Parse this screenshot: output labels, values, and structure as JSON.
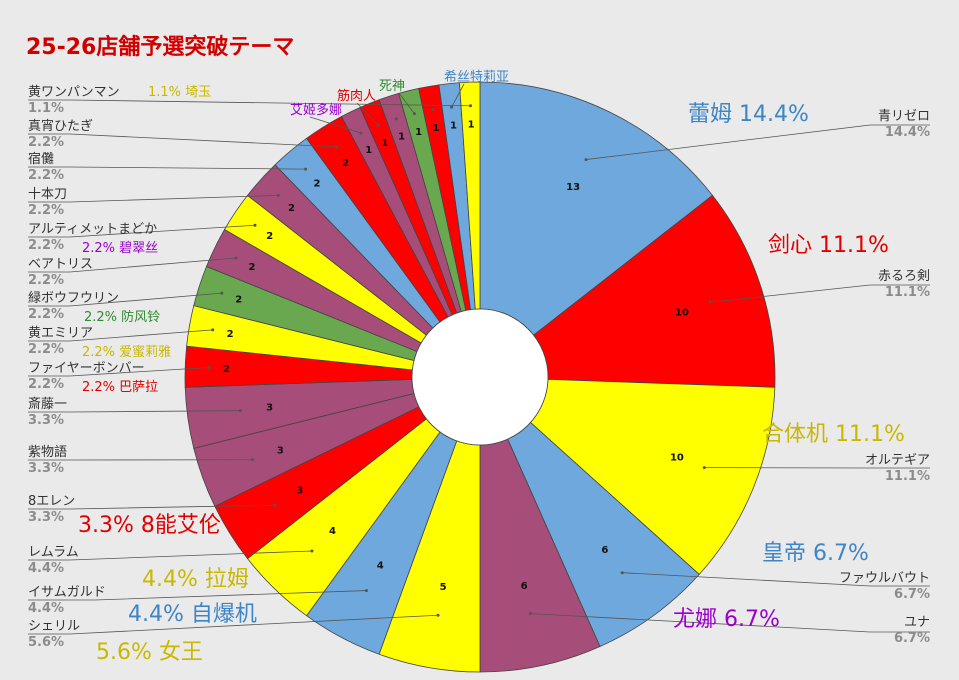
{
  "chart_data": {
    "type": "pie",
    "donut": true,
    "title": "25-26店舗予選突破テーマ",
    "slices": [
      {
        "name": "青リゼロ",
        "value": 13,
        "pct": "14.4%",
        "color": "#6fa8dc",
        "annotation": "蕾姆 14.4%",
        "ann_color": "#3d85c6"
      },
      {
        "name": "赤るろ剣",
        "value": 10,
        "pct": "11.1%",
        "color": "#ff0000",
        "annotation": "剑心 11.1%",
        "ann_color": "#e00000"
      },
      {
        "name": "オルテギア",
        "value": 10,
        "pct": "11.1%",
        "color": "#ffff00",
        "annotation": "合体机 11.1%",
        "ann_color": "#c9b800"
      },
      {
        "name": "ファウルバウト",
        "value": 6,
        "pct": "6.7%",
        "color": "#6fa8dc",
        "annotation": "皇帝 6.7%",
        "ann_color": "#3d85c6"
      },
      {
        "name": "ユナ",
        "value": 6,
        "pct": "6.7%",
        "color": "#a64d79",
        "annotation": "尤娜 6.7%",
        "ann_color": "#9900cc"
      },
      {
        "name": "シェリル",
        "value": 5,
        "pct": "5.6%",
        "color": "#ffff00",
        "annotation": "5.6% 女王",
        "ann_color": "#c9b800"
      },
      {
        "name": "イサムガルド",
        "value": 4,
        "pct": "4.4%",
        "color": "#6fa8dc",
        "annotation": "4.4% 自爆机",
        "ann_color": "#3d85c6"
      },
      {
        "name": "レムラム",
        "value": 4,
        "pct": "4.4%",
        "color": "#ffff00",
        "annotation": "4.4% 拉姆",
        "ann_color": "#c9b800"
      },
      {
        "name": "8エレン",
        "value": 3,
        "pct": "3.3%",
        "color": "#ff0000",
        "annotation": "3.3% 8能艾伦",
        "ann_color": "#e00000"
      },
      {
        "name": "紫物語",
        "value": 3,
        "pct": "3.3%",
        "color": "#a64d79",
        "annotation": "",
        "ann_color": ""
      },
      {
        "name": "斎藤一",
        "value": 3,
        "pct": "3.3%",
        "color": "#a64d79",
        "annotation": "",
        "ann_color": ""
      },
      {
        "name": "ファイヤーボンバー",
        "value": 2,
        "pct": "2.2%",
        "color": "#ff0000",
        "annotation": "2.2% 巴萨拉",
        "ann_color": "#e00000"
      },
      {
        "name": "黄エミリア",
        "value": 2,
        "pct": "2.2%",
        "color": "#ffff00",
        "annotation": "2.2% 爱蜜莉雅",
        "ann_color": "#c9b800"
      },
      {
        "name": "緑ボウフウリン",
        "value": 2,
        "pct": "2.2%",
        "color": "#6aa84f",
        "annotation": "2.2% 防风铃",
        "ann_color": "#2e8b2e"
      },
      {
        "name": "ベアトリス",
        "value": 2,
        "pct": "2.2%",
        "color": "#a64d79",
        "annotation": "",
        "ann_color": ""
      },
      {
        "name": "アルティメットまどか",
        "value": 2,
        "pct": "2.2%",
        "color": "#ffff00",
        "annotation": "2.2% 碧翠丝",
        "ann_color": "#9900cc"
      },
      {
        "name": "十本刀",
        "value": 2,
        "pct": "2.2%",
        "color": "#a64d79",
        "annotation": "",
        "ann_color": ""
      },
      {
        "name": "宿儺",
        "value": 2,
        "pct": "2.2%",
        "color": "#6fa8dc",
        "annotation": "",
        "ann_color": ""
      },
      {
        "name": "真宵ひたぎ",
        "value": 2,
        "pct": "2.2%",
        "color": "#ff0000",
        "annotation": "",
        "ann_color": ""
      },
      {
        "name": "艾姬多娜",
        "value": 1,
        "pct": "",
        "color": "#a64d79",
        "annotation": "",
        "ann_color": ""
      },
      {
        "name": "筋肉人",
        "value": 1,
        "pct": "",
        "color": "#ff0000",
        "annotation": "",
        "ann_color": ""
      },
      {
        "name": "",
        "value": 1,
        "pct": "",
        "color": "#a64d79",
        "annotation": "",
        "ann_color": ""
      },
      {
        "name": "死神",
        "value": 1,
        "pct": "",
        "color": "#6aa84f",
        "annotation": "",
        "ann_color": ""
      },
      {
        "name": "",
        "value": 1,
        "pct": "",
        "color": "#ff0000",
        "annotation": "",
        "ann_color": ""
      },
      {
        "name": "希丝特莉亚",
        "value": 1,
        "pct": "",
        "color": "#6fa8dc",
        "annotation": "",
        "ann_color": ""
      },
      {
        "name": "黄ワンパンマン",
        "value": 1,
        "pct": "1.1%",
        "color": "#ffff00",
        "annotation": "1.1% 埼玉",
        "ann_color": "#c9b800"
      }
    ],
    "small_tags": [
      {
        "text": "艾姬多娜",
        "color": "#9900cc"
      },
      {
        "text": "筋肉人",
        "color": "#e00000"
      },
      {
        "text": "死神",
        "color": "#2e8b2e"
      },
      {
        "text": "希丝特莉亚",
        "color": "#3d85c6"
      }
    ]
  }
}
